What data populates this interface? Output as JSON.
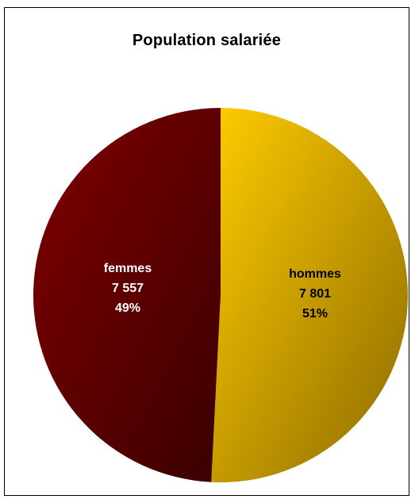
{
  "chart_data": {
    "type": "pie",
    "title": "Population salariée",
    "slices": [
      {
        "label": "hommes",
        "value": 7801,
        "value_text": "7 801",
        "percent_text": "51%",
        "color_light": "#ffcc00",
        "color_dark": "#8c6a00",
        "text_color": "#000000"
      },
      {
        "label": "femmes",
        "value": 7557,
        "value_text": "7 557",
        "percent_text": "49%",
        "color_light": "#800000",
        "color_dark": "#3a0000",
        "text_color": "#ffffff"
      }
    ],
    "legend": "none"
  }
}
